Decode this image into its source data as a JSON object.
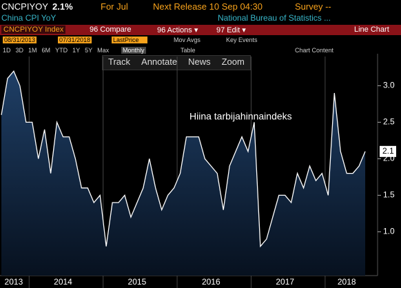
{
  "header": {
    "ticker": "CNCPIYOY",
    "last": "2.1%",
    "period": "For Jul",
    "next_release": "Next Release 10 Sep 04:30",
    "survey": "Survey --",
    "name": "China CPI YoY",
    "source": "National Bureau of Statistics ..."
  },
  "toolbar": {
    "security": "CNCPIYOY Index",
    "compare": "96 Compare",
    "actions": "96 Actions ▾",
    "edit": "97 Edit ▾",
    "view": "Line Chart",
    "start_date": "08/31/2013",
    "end_date": "07/31/2018",
    "field": "LastPrice",
    "mov_avgs": "Mov Avgs",
    "key_events": "Key Events",
    "ranges": [
      "1D",
      "3D",
      "1M",
      "6M",
      "YTD",
      "1Y",
      "5Y",
      "Max"
    ],
    "frequency": "Monthly",
    "table": "Table",
    "chart_content": "Chart Content",
    "tools": [
      "Track",
      "Annotate",
      "News",
      "Zoom"
    ]
  },
  "chart_data": {
    "type": "line",
    "annotation": "Hiina tarbijahinnaindeks",
    "categories": [
      null,
      null,
      "2013",
      null,
      null,
      null,
      null,
      null,
      null,
      null,
      "2014",
      null,
      null,
      null,
      null,
      null,
      null,
      null,
      null,
      null,
      null,
      null,
      "2015",
      null,
      null,
      null,
      null,
      null,
      null,
      null,
      null,
      null,
      null,
      null,
      "2016",
      null,
      null,
      null,
      null,
      null,
      null,
      null,
      null,
      null,
      null,
      null,
      "2017",
      null,
      null,
      null,
      null,
      null,
      null,
      null,
      null,
      null,
      "2018",
      null,
      null,
      null
    ],
    "series": [
      {
        "color": "#ffffff",
        "values": [
          2.6,
          3.1,
          3.2,
          3.0,
          2.5,
          2.5,
          2.0,
          2.4,
          1.8,
          2.5,
          2.3,
          2.3,
          2.0,
          1.6,
          1.6,
          1.4,
          1.5,
          0.8,
          1.4,
          1.4,
          1.5,
          1.2,
          1.4,
          1.6,
          2.0,
          1.6,
          1.3,
          1.5,
          1.6,
          1.8,
          2.3,
          2.3,
          2.3,
          2.0,
          1.9,
          1.8,
          1.3,
          1.9,
          2.1,
          2.3,
          2.1,
          2.5,
          0.8,
          0.9,
          1.2,
          1.5,
          1.5,
          1.4,
          1.8,
          1.6,
          1.9,
          1.7,
          1.8,
          1.5,
          2.9,
          2.1,
          1.8,
          1.8,
          1.9,
          2.1
        ]
      }
    ],
    "ylim": [
      0.4,
      3.4
    ],
    "yticks": [
      {
        "value": 1,
        "label": "1.0"
      },
      1.5,
      {
        "value": 2,
        "label": "2.0"
      },
      2.5,
      {
        "value": 3,
        "label": "3.0"
      }
    ]
  }
}
